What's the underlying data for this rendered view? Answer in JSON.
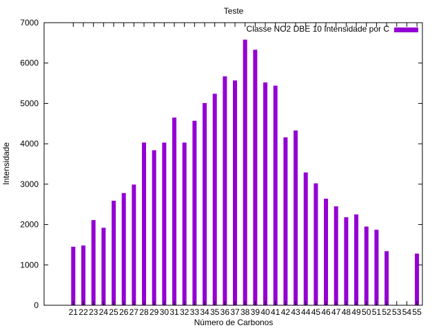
{
  "chart_data": {
    "type": "bar",
    "title": "Teste",
    "xlabel": "Número de Carbonos",
    "ylabel": "Intensidade",
    "ylim": [
      0,
      7000
    ],
    "yticks": [
      0,
      1000,
      2000,
      3000,
      4000,
      5000,
      6000,
      7000
    ],
    "grid": false,
    "legend_position": "top-right",
    "categories": [
      "21",
      "22",
      "23",
      "24",
      "25",
      "26",
      "27",
      "28",
      "29",
      "30",
      "31",
      "32",
      "33",
      "34",
      "35",
      "36",
      "37",
      "38",
      "39",
      "40",
      "41",
      "42",
      "43",
      "44",
      "45",
      "46",
      "47",
      "48",
      "49",
      "50",
      "51",
      "52",
      "53",
      "54",
      "55"
    ],
    "series": [
      {
        "name": "Classe NO2 DBE 10 Intensidade por C",
        "color": "#9400d3",
        "values": [
          1450,
          1480,
          2110,
          1920,
          2590,
          2780,
          2990,
          4030,
          3840,
          4030,
          4650,
          4030,
          4570,
          5010,
          5240,
          5670,
          5570,
          6580,
          6330,
          5520,
          5440,
          4160,
          4330,
          3290,
          3020,
          2640,
          2450,
          2180,
          2250,
          1950,
          1870,
          1340,
          0,
          0,
          1280
        ]
      }
    ]
  }
}
